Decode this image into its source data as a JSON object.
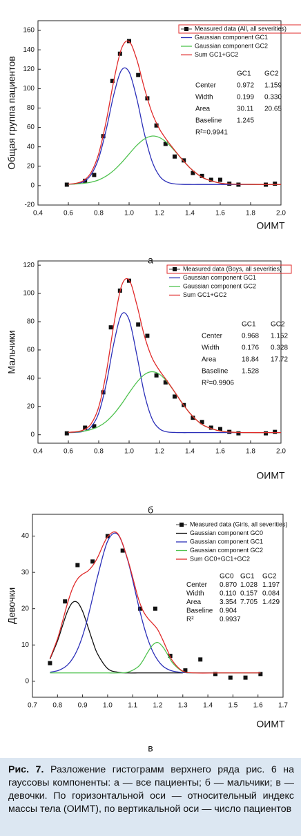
{
  "chart_data": [
    {
      "type": "line",
      "y_label": "Общая группа пациентов",
      "x_label": "ОИМТ",
      "panel": "а",
      "xlim": [
        0.4,
        2.0
      ],
      "xticks": [
        0.4,
        0.6,
        0.8,
        {
          "value": 1,
          "label": "1.0"
        },
        1.2,
        1.4,
        1.6,
        1.8,
        {
          "value": 2,
          "label": "2.0"
        }
      ],
      "ylim": [
        -20,
        170
      ],
      "yticks": [
        -20,
        0,
        20,
        40,
        60,
        80,
        100,
        120,
        140,
        160
      ],
      "x": [
        0.6,
        0.65,
        0.7,
        0.75,
        0.8,
        0.85,
        0.9,
        0.95,
        1.0,
        1.05,
        1.1,
        1.15,
        1.2,
        1.25,
        1.3,
        1.35,
        1.4,
        1.45,
        1.5,
        1.6,
        1.7,
        1.8,
        1.9,
        2.0
      ],
      "series": [
        {
          "name": "Measured data (All, all severities)",
          "type": "scatter",
          "color": "#111111",
          "x": [
            0.59,
            0.71,
            0.77,
            0.83,
            0.89,
            0.94,
            1.0,
            1.06,
            1.12,
            1.18,
            1.24,
            1.3,
            1.36,
            1.42,
            1.48,
            1.54,
            1.6,
            1.66,
            1.72,
            1.9,
            1.96
          ],
          "values": [
            1,
            5,
            11,
            51,
            108,
            136,
            149,
            114,
            90,
            62,
            43,
            30,
            26,
            13,
            10,
            6,
            6,
            2,
            1,
            1,
            2
          ]
        },
        {
          "name": "Gaussian component GC1",
          "type": "line",
          "color": "#2b2fb8",
          "values": [
            1.4,
            1.9,
            4.1,
            11.3,
            28.3,
            58.2,
            94.2,
            119.0,
            117.2,
            90.1,
            54.0,
            25.6,
            10.0,
            3.7,
            1.8,
            1.3,
            1.2,
            1.2,
            1.2,
            1.2,
            1.2,
            1.2,
            1.2,
            1.2
          ]
        },
        {
          "name": "Gaussian component GC2",
          "type": "line",
          "color": "#4fc24f",
          "values": [
            1.4,
            1.7,
            2.3,
            3.6,
            5.9,
            9.9,
            15.8,
            23.6,
            32.6,
            41.4,
            48.0,
            51.1,
            49.6,
            44.1,
            35.9,
            26.8,
            18.4,
            11.8,
            7.1,
            2.6,
            1.5,
            1.3,
            1.2,
            1.2
          ]
        },
        {
          "name": "Sum GC1+GC2",
          "type": "line",
          "color": "#e02a2a",
          "values": [
            1.5,
            2.4,
            5.2,
            13.7,
            33.0,
            66.9,
            108.8,
            141.4,
            148.6,
            130.3,
            100.8,
            75.5,
            58.4,
            46.6,
            36.5,
            26.9,
            18.4,
            11.8,
            7.1,
            2.6,
            1.5,
            1.3,
            1.2,
            1.2
          ]
        }
      ],
      "fit_table": {
        "headers": [
          "GC1",
          "GC2"
        ],
        "rows": [
          [
            "Center",
            "0.972",
            "1.159"
          ],
          [
            "Width",
            "0.199",
            "0.330"
          ],
          [
            "Area",
            "30.11",
            "20.65"
          ],
          [
            "Baseline",
            "1.245"
          ],
          [
            "R²=0.9941"
          ]
        ]
      }
    },
    {
      "type": "line",
      "y_label": "Мальчики",
      "x_label": "ОИМТ",
      "panel": "б",
      "xlim": [
        0.4,
        2.0
      ],
      "xticks": [
        0.4,
        0.6,
        0.8,
        {
          "value": 1,
          "label": "1.0"
        },
        1.2,
        1.4,
        1.6,
        1.8,
        {
          "value": 2,
          "label": "2.0"
        }
      ],
      "ylim": [
        -6,
        123
      ],
      "yticks": [
        0,
        20,
        40,
        60,
        80,
        100,
        120
      ],
      "x": [
        0.6,
        0.65,
        0.7,
        0.75,
        0.8,
        0.85,
        0.9,
        0.95,
        1.0,
        1.05,
        1.1,
        1.15,
        1.2,
        1.25,
        1.3,
        1.35,
        1.4,
        1.45,
        1.5,
        1.6,
        1.7,
        1.8,
        1.9,
        2.0
      ],
      "series": [
        {
          "name": "Measured data (Boys, all severities)",
          "type": "scatter",
          "color": "#111111",
          "x": [
            0.59,
            0.71,
            0.77,
            0.83,
            0.88,
            0.94,
            1.0,
            1.06,
            1.12,
            1.18,
            1.24,
            1.3,
            1.36,
            1.42,
            1.48,
            1.54,
            1.6,
            1.66,
            1.72,
            1.9,
            1.96
          ],
          "values": [
            1,
            5,
            6,
            30,
            76,
            102,
            109,
            78,
            70,
            42,
            37,
            27,
            21,
            12,
            9,
            5,
            4,
            2,
            1,
            1,
            2
          ]
        },
        {
          "name": "Gaussian component GC1",
          "type": "line",
          "color": "#2b2fb8",
          "values": [
            1.5,
            1.7,
            2.4,
            5.5,
            15.3,
            36.3,
            64.9,
            85.1,
            81.4,
            56.9,
            29.3,
            11.6,
            4.2,
            2.0,
            1.6,
            1.5,
            1.5,
            1.5,
            1.5,
            1.5,
            1.5,
            1.5,
            1.5,
            1.5
          ]
        },
        {
          "name": "Gaussian component GC2",
          "type": "line",
          "color": "#4fc24f",
          "values": [
            1.7,
            1.9,
            2.5,
            3.7,
            5.8,
            9.4,
            14.8,
            21.7,
            29.6,
            37.0,
            42.5,
            44.6,
            42.8,
            37.6,
            30.2,
            22.3,
            15.3,
            9.8,
            6.1,
            2.6,
            1.7,
            1.5,
            1.5,
            1.5
          ]
        },
        {
          "name": "Sum GC1+GC2",
          "type": "line",
          "color": "#e02a2a",
          "values": [
            1.7,
            2.1,
            3.4,
            7.7,
            19.6,
            44.2,
            78.2,
            105.3,
            109.5,
            92.4,
            70.3,
            54.7,
            45.5,
            38.1,
            30.3,
            22.3,
            15.3,
            9.8,
            6.1,
            2.6,
            1.7,
            1.5,
            1.5,
            1.5
          ]
        }
      ],
      "fit_table": {
        "headers": [
          "GC1",
          "GC2"
        ],
        "rows": [
          [
            "Center",
            "0.968",
            "1.152"
          ],
          [
            "Width",
            "0.176",
            "0.328"
          ],
          [
            "Area",
            "18.84",
            "17.72"
          ],
          [
            "Baseline",
            "1.528"
          ],
          [
            "R²=0.9906"
          ]
        ]
      }
    },
    {
      "type": "line",
      "y_label": "Девочки",
      "x_label": "ОИМТ",
      "panel": "в",
      "xlim": [
        0.7,
        1.7
      ],
      "xticks": [
        0.7,
        0.8,
        0.9,
        {
          "value": 1,
          "label": "1.0"
        },
        1.1,
        1.2,
        1.3,
        1.4,
        1.5,
        1.6,
        1.7
      ],
      "ylim": [
        -4.4,
        46
      ],
      "yticks": [
        0,
        10,
        20,
        30,
        40
      ],
      "x": [
        0.77,
        0.8,
        0.82,
        0.84,
        0.86,
        0.88,
        0.9,
        0.92,
        0.94,
        0.96,
        1.0,
        1.04,
        1.08,
        1.12,
        1.14,
        1.16,
        1.18,
        1.2,
        1.22,
        1.24,
        1.26,
        1.3,
        1.35,
        1.45,
        1.61
      ],
      "series": [
        {
          "name": "Measured data (Girls, all severities)",
          "type": "scatter",
          "color": "#111111",
          "x": [
            0.77,
            0.83,
            0.88,
            0.94,
            1.0,
            1.06,
            1.13,
            1.19,
            1.25,
            1.31,
            1.37,
            1.43,
            1.49,
            1.55,
            1.61
          ],
          "values": [
            5,
            22,
            32,
            33,
            40,
            36,
            20,
            20,
            7,
            3,
            6,
            2,
            1,
            1,
            2
          ]
        },
        {
          "name": "Gaussian component GC0",
          "type": "line",
          "color": "#111111",
          "values": [
            6.1,
            11.1,
            15.3,
            19.3,
            21.7,
            21.7,
            19.3,
            15.3,
            11.1,
            7.5,
            3.5,
            2.5,
            2.3,
            2.3,
            2.3,
            2.3,
            2.3,
            2.3,
            2.3,
            2.3,
            2.3,
            2.3,
            null,
            null,
            null
          ]
        },
        {
          "name": "Gaussian component GC1",
          "type": "line",
          "color": "#2b2fb8",
          "values": [
            2.5,
            2.9,
            3.5,
            4.5,
            6.2,
            8.8,
            12.5,
            17.3,
            23.0,
            28.9,
            38.6,
            40.5,
            33.4,
            21.8,
            16.3,
            11.7,
            8.2,
            5.8,
            4.2,
            3.3,
            2.8,
            2.4,
            2.3,
            2.3,
            2.3
          ]
        },
        {
          "name": "Gaussian component GC2",
          "type": "line",
          "color": "#4fc24f",
          "values": [
            2.3,
            2.3,
            2.3,
            2.3,
            2.3,
            2.3,
            2.3,
            2.3,
            2.3,
            2.3,
            2.3,
            2.3,
            2.5,
            3.9,
            5.6,
            8.0,
            10.0,
            10.7,
            9.5,
            7.3,
            5.0,
            2.7,
            2.3,
            2.3,
            2.3
          ]
        },
        {
          "name": "Sum GC0+GC1+GC2",
          "type": "line",
          "color": "#e02a2a",
          "values": [
            6.3,
            11.7,
            16.5,
            21.5,
            25.6,
            28.2,
            29.5,
            30.3,
            31.8,
            34.1,
            39.8,
            40.7,
            33.6,
            23.4,
            19.6,
            17.4,
            15.9,
            14.2,
            11.4,
            8.3,
            5.5,
            2.8,
            2.3,
            2.3,
            2.3
          ]
        }
      ],
      "fit_table": {
        "headers": [
          "GC0",
          "GC1",
          "GC2"
        ],
        "rows": [
          [
            "Center",
            "0.870",
            "1.028",
            "1.197"
          ],
          [
            "Width",
            "0.110",
            "0.157",
            "0.084"
          ],
          [
            "Area",
            "3.354",
            "7.705",
            "1.429"
          ],
          [
            "Baseline",
            "0.904"
          ],
          [
            "R²",
            "0.9937"
          ]
        ]
      }
    }
  ],
  "caption": {
    "label": "Рис. 7.",
    "text": "Разложение гистограмм верхнего ряда рис. 6 на гауссовы компоненты: а — все пациенты; б — мальчики; в — девочки. По горизонтальной оси — относительный индекс массы тела (ОИМТ), по вертикальной оси — число пациентов"
  }
}
